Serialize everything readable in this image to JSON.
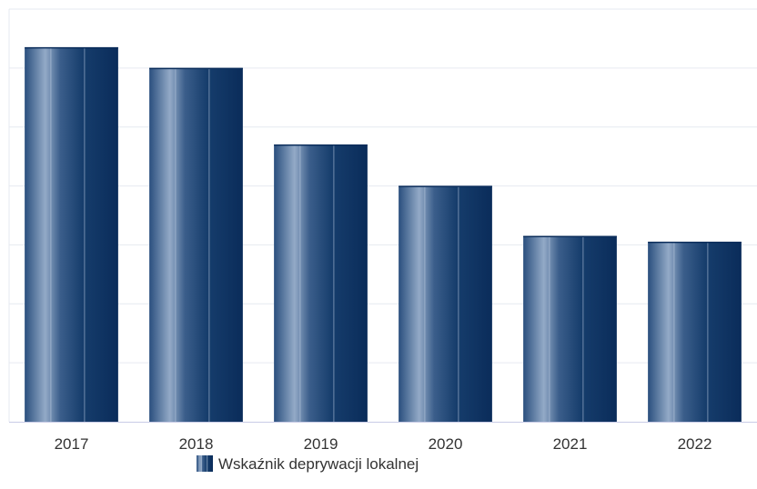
{
  "chart_data": {
    "type": "bar",
    "title": "",
    "xlabel": "",
    "ylabel": "",
    "categories": [
      "2017",
      "2018",
      "2019",
      "2020",
      "2021",
      "2022"
    ],
    "series": [
      {
        "name": "Wskaźnik deprywacji lokalnej",
        "values": [
          6.35,
          6.0,
          4.7,
          4.0,
          3.15,
          3.05
        ]
      }
    ],
    "ylim": [
      0,
      7
    ],
    "grid": true,
    "y_tick_labels_visible": false,
    "legend_position": "bottom-center",
    "colors": {
      "bar_dark": "#0b2f5e",
      "bar_light": "#8fa6c4",
      "grid": "#e6e9f0",
      "axis": "#c8cbe6"
    }
  }
}
